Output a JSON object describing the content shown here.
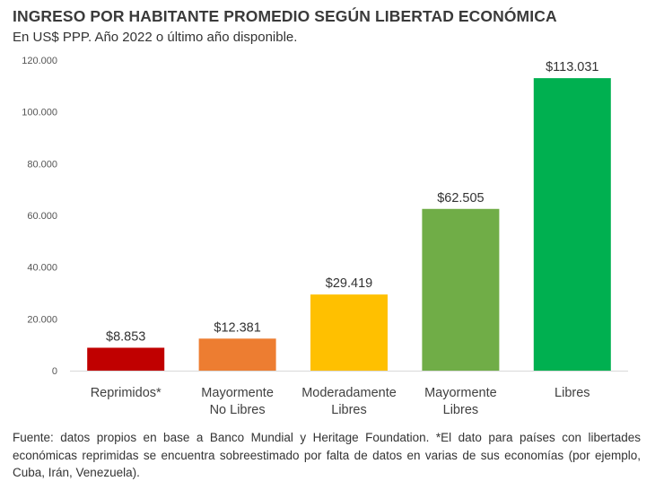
{
  "header": {
    "title": "INGRESO POR HABITANTE PROMEDIO SEGÚN LIBERTAD ECONÓMICA",
    "subtitle": "En US$ PPP. Año 2022 o último año disponible."
  },
  "chart_data": {
    "type": "bar",
    "categories": [
      [
        "Reprimidos*"
      ],
      [
        "Mayormente",
        "No Libres"
      ],
      [
        "Moderadamente",
        "Libres"
      ],
      [
        "Mayormente",
        "Libres"
      ],
      [
        "Libres"
      ]
    ],
    "values": [
      8853,
      12381,
      29419,
      62505,
      113031
    ],
    "data_labels": [
      "$8.853",
      "$12.381",
      "$29.419",
      "$62.505",
      "$113.031"
    ],
    "colors": [
      "#c00000",
      "#ed7d31",
      "#ffc000",
      "#70ad47",
      "#00b050"
    ],
    "ylim": [
      0,
      120000
    ],
    "yticks": [
      0,
      20000,
      40000,
      60000,
      80000,
      100000,
      120000
    ],
    "ytick_labels": [
      "0",
      "20.000",
      "40.000",
      "60.000",
      "80.000",
      "100.000",
      "120.000"
    ],
    "grid": false,
    "legend": "none"
  },
  "footer": {
    "source": "Fuente: datos propios en base a Banco Mundial y Heritage Foundation. *El dato para países con libertades económicas reprimidas se encuentra sobreestimado por falta de datos en varias de sus economías (por ejemplo, Cuba, Irán, Venezuela)."
  }
}
